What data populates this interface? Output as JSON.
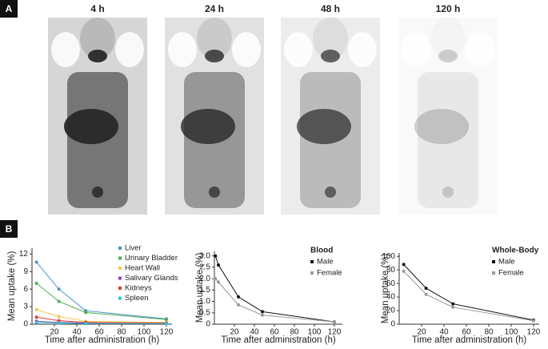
{
  "panel_a_label": "A",
  "panel_b_label": "B",
  "image_labels": [
    "4 h",
    "24 h",
    "48 h",
    "120 h"
  ],
  "chart_data": [
    {
      "type": "line",
      "xlabel": "Time after administration (h)",
      "ylabel": "Mean uptake (%)",
      "xlim": [
        0,
        125
      ],
      "xticks": [
        20,
        40,
        60,
        80,
        100,
        120
      ],
      "ylim": [
        0,
        13
      ],
      "yticks": [
        0,
        3,
        6,
        9,
        12
      ],
      "legend": "right",
      "x": [
        4,
        24,
        48,
        120
      ],
      "series": [
        {
          "name": "Liver",
          "color": "#4a90d0",
          "values": [
            10.6,
            6,
            2.3,
            0.9
          ]
        },
        {
          "name": "Urinary Bladder",
          "color": "#4caf50",
          "values": [
            7,
            3.9,
            2,
            0.8
          ]
        },
        {
          "name": "Heart Wall",
          "color": "#f2c94c",
          "values": [
            2.5,
            1.3,
            0.5,
            0.3
          ]
        },
        {
          "name": "Salivary Glands",
          "color": "#8e44ad",
          "values": [
            0.5,
            0.3,
            0.2,
            0.1
          ]
        },
        {
          "name": "Kidneys",
          "color": "#e53935",
          "values": [
            1.2,
            0.6,
            0.3,
            0.2
          ]
        },
        {
          "name": "Spleen",
          "color": "#26c6da",
          "values": [
            0.3,
            0.2,
            0.1,
            0.1
          ]
        }
      ]
    },
    {
      "type": "line",
      "xlabel": "Time after administration (h)",
      "ylabel": "Mean uptake (%)",
      "legend_title": "Blood",
      "xlim": [
        0,
        128
      ],
      "xticks": [
        20,
        40,
        60,
        80,
        100,
        120
      ],
      "ylim": [
        0,
        3.2
      ],
      "yticks": [
        0,
        0.5,
        {
          "value": 1,
          "label": "1.0"
        },
        1.5,
        {
          "value": 2,
          "label": "2.0"
        },
        2.5,
        {
          "value": 3,
          "label": "3.0"
        }
      ],
      "legend": "upper right",
      "x": [
        1,
        4,
        24,
        48,
        120
      ],
      "series": [
        {
          "name": "Male",
          "color": "#111111",
          "values": [
            3,
            2.6,
            1.2,
            0.55,
            0.1
          ]
        },
        {
          "name": "Female",
          "color": "#999999",
          "values": [
            2,
            1.85,
            0.85,
            0.4,
            0.1
          ]
        }
      ]
    },
    {
      "type": "line",
      "xlabel": "Time after administration (h)",
      "ylabel": "Mean uptake (%)",
      "legend_title": "Whole-Body",
      "xlim": [
        0,
        125
      ],
      "xticks": [
        20,
        40,
        60,
        80,
        100,
        120
      ],
      "ylim": [
        0,
        105
      ],
      "yticks": [
        0,
        20,
        40,
        60,
        80,
        100
      ],
      "legend": "upper right",
      "x": [
        4,
        24,
        48,
        120
      ],
      "series": [
        {
          "name": "Male",
          "color": "#111111",
          "values": [
            88,
            53,
            30,
            6
          ]
        },
        {
          "name": "Female",
          "color": "#999999",
          "values": [
            78,
            44,
            25,
            5
          ]
        }
      ]
    }
  ]
}
